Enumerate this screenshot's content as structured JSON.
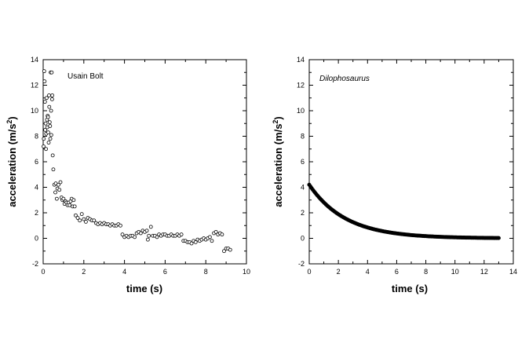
{
  "chart_data": [
    {
      "type": "scatter",
      "title": "",
      "annotation": "Usain Bolt",
      "xlabel": "time (s)",
      "ylabel_main": "acceleration (m/s",
      "ylabel_sup": "2",
      "ylabel_tail": ")",
      "xlim": [
        0,
        10
      ],
      "ylim": [
        -2,
        14
      ],
      "xticks": [
        0,
        2,
        4,
        6,
        8,
        10
      ],
      "yticks": [
        -2,
        0,
        2,
        4,
        6,
        8,
        10,
        12,
        14
      ],
      "marker": "open-circle",
      "series": [
        {
          "points": [
            [
              0.02,
              7.2
            ],
            [
              0.03,
              7.8
            ],
            [
              0.05,
              13.1
            ],
            [
              0.07,
              12.3
            ],
            [
              0.09,
              10.7
            ],
            [
              0.1,
              8.5
            ],
            [
              0.12,
              9.0
            ],
            [
              0.14,
              7.0
            ],
            [
              0.15,
              8.2
            ],
            [
              0.17,
              11.0
            ],
            [
              0.19,
              9.3
            ],
            [
              0.2,
              8.7
            ],
            [
              0.22,
              9.6
            ],
            [
              0.24,
              9.5
            ],
            [
              0.25,
              8.3
            ],
            [
              0.27,
              7.5
            ],
            [
              0.29,
              11.2
            ],
            [
              0.3,
              10.3
            ],
            [
              0.32,
              9.1
            ],
            [
              0.34,
              8.8
            ],
            [
              0.35,
              7.8
            ],
            [
              0.37,
              13.0
            ],
            [
              0.39,
              10.0
            ],
            [
              0.4,
              8.1
            ],
            [
              0.42,
              13.0
            ],
            [
              0.44,
              10.9
            ],
            [
              0.45,
              11.2
            ],
            [
              0.47,
              6.5
            ],
            [
              0.5,
              5.4
            ],
            [
              0.55,
              4.2
            ],
            [
              0.6,
              3.6
            ],
            [
              0.62,
              4.3
            ],
            [
              0.67,
              3.1
            ],
            [
              0.7,
              3.9
            ],
            [
              0.75,
              4.2
            ],
            [
              0.8,
              3.8
            ],
            [
              0.85,
              4.4
            ],
            [
              0.9,
              3.2
            ],
            [
              0.95,
              3.0
            ],
            [
              1.0,
              3.1
            ],
            [
              1.05,
              2.7
            ],
            [
              1.1,
              2.9
            ],
            [
              1.15,
              2.8
            ],
            [
              1.2,
              2.6
            ],
            [
              1.25,
              2.8
            ],
            [
              1.3,
              2.6
            ],
            [
              1.35,
              2.9
            ],
            [
              1.4,
              3.1
            ],
            [
              1.45,
              2.5
            ],
            [
              1.5,
              3.0
            ],
            [
              1.55,
              2.5
            ],
            [
              1.6,
              1.8
            ],
            [
              1.7,
              1.6
            ],
            [
              1.8,
              1.4
            ],
            [
              1.9,
              1.9
            ],
            [
              2.0,
              1.5
            ],
            [
              2.1,
              1.3
            ],
            [
              2.2,
              1.6
            ],
            [
              2.3,
              1.5
            ],
            [
              2.4,
              1.4
            ],
            [
              2.5,
              1.4
            ],
            [
              2.6,
              1.2
            ],
            [
              2.7,
              1.1
            ],
            [
              2.8,
              1.2
            ],
            [
              2.9,
              1.1
            ],
            [
              3.0,
              1.2
            ],
            [
              3.1,
              1.1
            ],
            [
              3.2,
              1.1
            ],
            [
              3.3,
              1.0
            ],
            [
              3.4,
              1.1
            ],
            [
              3.5,
              1.0
            ],
            [
              3.6,
              1.0
            ],
            [
              3.7,
              1.1
            ],
            [
              3.8,
              1.0
            ],
            [
              3.9,
              0.3
            ],
            [
              4.0,
              0.1
            ],
            [
              4.1,
              0.2
            ],
            [
              4.2,
              0.1
            ],
            [
              4.3,
              0.2
            ],
            [
              4.4,
              0.2
            ],
            [
              4.5,
              0.1
            ],
            [
              4.6,
              0.4
            ],
            [
              4.7,
              0.5
            ],
            [
              4.8,
              0.4
            ],
            [
              4.9,
              0.6
            ],
            [
              5.0,
              0.5
            ],
            [
              5.1,
              0.6
            ],
            [
              5.15,
              -0.1
            ],
            [
              5.2,
              0.2
            ],
            [
              5.3,
              0.9
            ],
            [
              5.4,
              0.2
            ],
            [
              5.5,
              0.2
            ],
            [
              5.6,
              0.1
            ],
            [
              5.7,
              0.3
            ],
            [
              5.8,
              0.2
            ],
            [
              5.9,
              0.3
            ],
            [
              6.0,
              0.3
            ],
            [
              6.1,
              0.2
            ],
            [
              6.2,
              0.2
            ],
            [
              6.3,
              0.3
            ],
            [
              6.4,
              0.2
            ],
            [
              6.5,
              0.2
            ],
            [
              6.6,
              0.3
            ],
            [
              6.7,
              0.2
            ],
            [
              6.8,
              0.3
            ],
            [
              6.9,
              -0.2
            ],
            [
              7.0,
              -0.2
            ],
            [
              7.1,
              -0.3
            ],
            [
              7.2,
              -0.3
            ],
            [
              7.3,
              -0.4
            ],
            [
              7.4,
              -0.2
            ],
            [
              7.5,
              -0.3
            ],
            [
              7.6,
              -0.1
            ],
            [
              7.7,
              -0.2
            ],
            [
              7.8,
              -0.1
            ],
            [
              7.9,
              0.0
            ],
            [
              8.0,
              -0.1
            ],
            [
              8.1,
              0.0
            ],
            [
              8.2,
              0.1
            ],
            [
              8.3,
              -0.2
            ],
            [
              8.4,
              0.4
            ],
            [
              8.5,
              0.5
            ],
            [
              8.6,
              0.3
            ],
            [
              8.7,
              0.4
            ],
            [
              8.8,
              0.3
            ],
            [
              8.9,
              -1.0
            ],
            [
              9.0,
              -0.8
            ],
            [
              9.1,
              -0.8
            ],
            [
              9.2,
              -0.9
            ]
          ]
        }
      ]
    },
    {
      "type": "scatter",
      "title": "",
      "annotation": "Dilophosaurus",
      "annotation_style": "italic",
      "xlabel": "time (s)",
      "ylabel_main": "acceleration (m/s",
      "ylabel_sup": "2",
      "ylabel_tail": ")",
      "xlim": [
        0,
        14
      ],
      "ylim": [
        -2,
        14
      ],
      "xticks": [
        0,
        2,
        4,
        6,
        8,
        10,
        12,
        14
      ],
      "yticks": [
        -2,
        0,
        2,
        4,
        6,
        8,
        10,
        12,
        14
      ],
      "marker": "filled-dense",
      "series": [
        {
          "model": "exponential-decay",
          "a0": 4.2,
          "tau": 2.5,
          "x_start": 0,
          "x_end": 13,
          "samples": 160
        }
      ]
    }
  ]
}
